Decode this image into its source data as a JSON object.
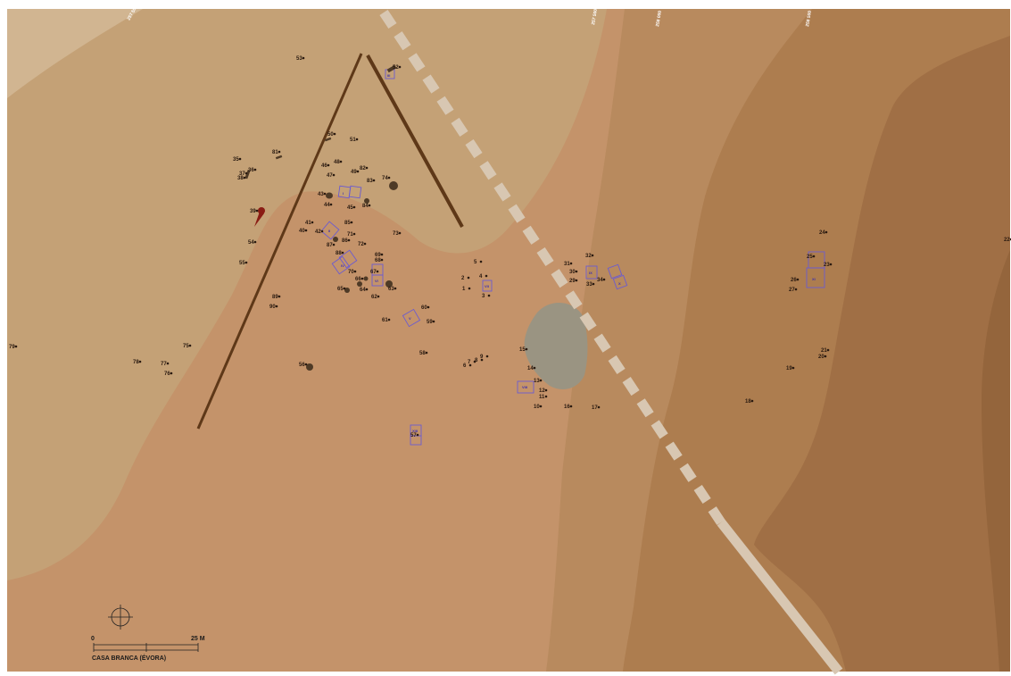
{
  "site": {
    "caption": "CASA BRANCA (ÉVORA)"
  },
  "scale": {
    "start_label": "0",
    "end_label": "25 M"
  },
  "grid_ticks": [
    "257 500",
    "257 500",
    "258 000",
    "258 500"
  ],
  "colors": {
    "zone_light": "#d1b591",
    "zone_plain": "#c4a176",
    "zone_mid": "#c4936a",
    "zone_slope": "#b88a5e",
    "zone_dark": "#ad7d4f",
    "zone_darkest": "#a06f45",
    "pond": "#9a9482",
    "road": "#d8c7b2",
    "trench": "#5e3818",
    "stone": "#4e3a26",
    "squares": "#6b5bd0",
    "marker": "#8a1c14"
  },
  "points": [
    {
      "id": "1"
    },
    {
      "id": "2"
    },
    {
      "id": "3"
    },
    {
      "id": "4"
    },
    {
      "id": "5"
    },
    {
      "id": "6"
    },
    {
      "id": "7"
    },
    {
      "id": "8"
    },
    {
      "id": "9"
    },
    {
      "id": "10"
    },
    {
      "id": "11"
    },
    {
      "id": "12"
    },
    {
      "id": "13"
    },
    {
      "id": "14"
    },
    {
      "id": "15"
    },
    {
      "id": "16"
    },
    {
      "id": "17"
    },
    {
      "id": "18"
    },
    {
      "id": "19"
    },
    {
      "id": "20"
    },
    {
      "id": "21"
    },
    {
      "id": "22"
    },
    {
      "id": "23"
    },
    {
      "id": "24"
    },
    {
      "id": "25"
    },
    {
      "id": "26"
    },
    {
      "id": "27"
    },
    {
      "id": "29"
    },
    {
      "id": "30"
    },
    {
      "id": "31"
    },
    {
      "id": "32"
    },
    {
      "id": "33"
    },
    {
      "id": "34"
    },
    {
      "id": "35"
    },
    {
      "id": "36"
    },
    {
      "id": "37"
    },
    {
      "id": "38"
    },
    {
      "id": "39"
    },
    {
      "id": "40"
    },
    {
      "id": "41"
    },
    {
      "id": "42"
    },
    {
      "id": "43"
    },
    {
      "id": "44"
    },
    {
      "id": "45"
    },
    {
      "id": "46"
    },
    {
      "id": "47"
    },
    {
      "id": "48"
    },
    {
      "id": "49"
    },
    {
      "id": "50"
    },
    {
      "id": "51"
    },
    {
      "id": "52"
    },
    {
      "id": "53"
    },
    {
      "id": "54"
    },
    {
      "id": "55"
    },
    {
      "id": "56"
    },
    {
      "id": "57"
    },
    {
      "id": "58"
    },
    {
      "id": "59"
    },
    {
      "id": "60"
    },
    {
      "id": "61"
    },
    {
      "id": "62"
    },
    {
      "id": "63"
    },
    {
      "id": "64"
    },
    {
      "id": "65"
    },
    {
      "id": "66"
    },
    {
      "id": "67"
    },
    {
      "id": "68"
    },
    {
      "id": "69"
    },
    {
      "id": "70"
    },
    {
      "id": "71"
    },
    {
      "id": "72"
    },
    {
      "id": "73"
    },
    {
      "id": "74"
    },
    {
      "id": "75"
    },
    {
      "id": "76"
    },
    {
      "id": "77"
    },
    {
      "id": "78"
    },
    {
      "id": "79"
    },
    {
      "id": "81"
    },
    {
      "id": "82"
    },
    {
      "id": "83"
    },
    {
      "id": "84"
    },
    {
      "id": "85"
    },
    {
      "id": "86"
    },
    {
      "id": "87"
    },
    {
      "id": "88"
    },
    {
      "id": "89"
    },
    {
      "id": "90"
    }
  ]
}
